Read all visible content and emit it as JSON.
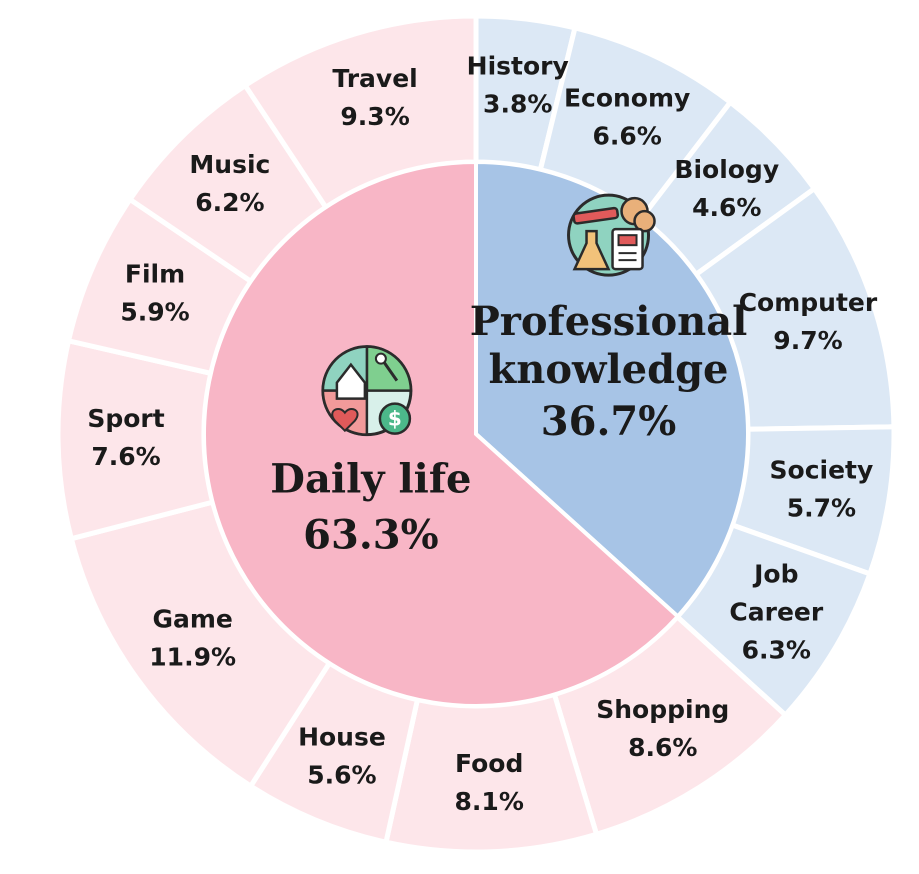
{
  "chart_data": {
    "type": "pie",
    "inner": [
      {
        "name": "Daily life",
        "value": 63.3,
        "label": "63.3%",
        "color": "#f8b6c6",
        "icon": "daily-life-icon"
      },
      {
        "name": "Professional knowledge",
        "name_lines": [
          "Professional",
          "knowledge"
        ],
        "value": 36.7,
        "label": "36.7%",
        "color": "#a7c4e6",
        "icon": "professional-knowledge-icon"
      }
    ],
    "outer": [
      {
        "name": "History",
        "lines": [
          "History"
        ],
        "value": 3.8,
        "label": "3.8%",
        "group": "Professional knowledge"
      },
      {
        "name": "Economy",
        "lines": [
          "Economy"
        ],
        "value": 6.6,
        "label": "6.6%",
        "group": "Professional knowledge"
      },
      {
        "name": "Biology",
        "lines": [
          "Biology"
        ],
        "value": 4.6,
        "label": "4.6%",
        "group": "Professional knowledge"
      },
      {
        "name": "Computer",
        "lines": [
          "Computer"
        ],
        "value": 9.7,
        "label": "9.7%",
        "group": "Professional knowledge"
      },
      {
        "name": "Society",
        "lines": [
          "Society"
        ],
        "value": 5.7,
        "label": "5.7%",
        "group": "Professional knowledge"
      },
      {
        "name": "Job Career",
        "lines": [
          "Job",
          "Career"
        ],
        "value": 6.3,
        "label": "6.3%",
        "group": "Professional knowledge"
      },
      {
        "name": "Shopping",
        "lines": [
          "Shopping"
        ],
        "value": 8.6,
        "label": "8.6%",
        "group": "Daily life"
      },
      {
        "name": "Food",
        "lines": [
          "Food"
        ],
        "value": 8.1,
        "label": "8.1%",
        "group": "Daily life"
      },
      {
        "name": "House",
        "lines": [
          "House"
        ],
        "value": 5.6,
        "label": "5.6%",
        "group": "Daily life"
      },
      {
        "name": "Game",
        "lines": [
          "Game"
        ],
        "value": 11.9,
        "label": "11.9%",
        "group": "Daily life"
      },
      {
        "name": "Sport",
        "lines": [
          "Sport"
        ],
        "value": 7.6,
        "label": "7.6%",
        "group": "Daily life"
      },
      {
        "name": "Film",
        "lines": [
          "Film"
        ],
        "value": 5.9,
        "label": "5.9%",
        "group": "Daily life"
      },
      {
        "name": "Music",
        "lines": [
          "Music"
        ],
        "value": 6.2,
        "label": "6.2%",
        "group": "Daily life"
      },
      {
        "name": "Travel",
        "lines": [
          "Travel"
        ],
        "value": 9.3,
        "label": "9.3%",
        "group": "Daily life"
      }
    ],
    "outer_colors": {
      "Daily life": "#fde6ea",
      "Professional knowledge": "#dce8f5"
    },
    "start_angle": "top (12 o'clock)",
    "direction": "clockwise"
  }
}
